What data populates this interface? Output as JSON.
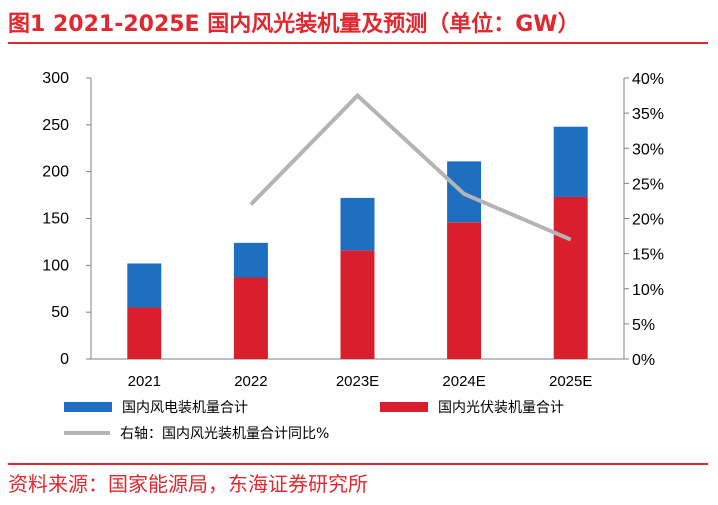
{
  "header": {
    "title": "图1  2021-2025E 国内风光装机量及预测（单位：GW）"
  },
  "footer": {
    "source": "资料来源：国家能源局，东海证券研究所"
  },
  "colors": {
    "wind": "#1f6fc1",
    "solar": "#d91f2e",
    "ratio_line": "#b4b4b4",
    "accent": "#e0282e"
  },
  "legend": {
    "wind_label": "国内风电装机量合计",
    "solar_label": "国内光伏装机量合计",
    "line_label": "右轴：国内风光装机量合计同比%"
  },
  "chart_data": {
    "type": "bar",
    "stacked": true,
    "categories": [
      "2021",
      "2022",
      "2023E",
      "2024E",
      "2025E"
    ],
    "series": [
      {
        "name": "国内光伏装机量合计",
        "values": [
          55,
          87,
          116,
          146,
          173
        ]
      },
      {
        "name": "国内风电装机量合计",
        "values": [
          47,
          37,
          56,
          65,
          75
        ]
      }
    ],
    "line_series": {
      "name": "右轴：国内风光装机量合计同比%",
      "axis": "right",
      "values": [
        null,
        22,
        37.5,
        23.5,
        17
      ]
    },
    "y_left": {
      "min": 0,
      "max": 300,
      "ticks": [
        "0",
        "50",
        "100",
        "150",
        "200",
        "250",
        "300"
      ]
    },
    "y_right": {
      "min": 0,
      "max": 40,
      "ticks": [
        "0%",
        "5%",
        "10%",
        "15%",
        "20%",
        "25%",
        "30%",
        "35%",
        "40%"
      ]
    },
    "grid": false,
    "legend_position": "bottom"
  }
}
